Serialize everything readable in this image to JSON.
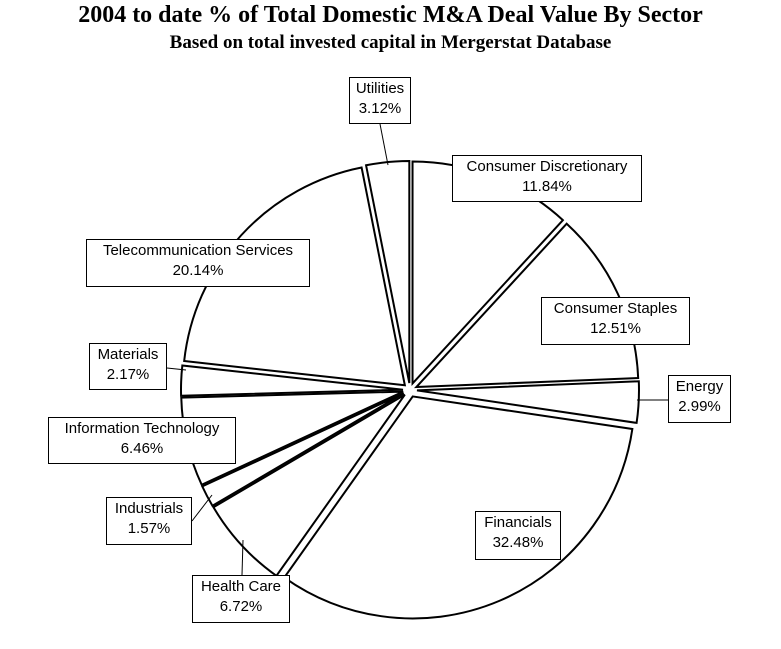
{
  "chart_data": {
    "type": "pie",
    "title": "2004 to date % of Total Domestic M&A Deal Value By Sector",
    "subtitle": "Based on total invested capital in Mergerstat Database",
    "exploded": true,
    "slices": [
      {
        "label": "Consumer Discretionary",
        "value": 11.84,
        "display": "11.84%"
      },
      {
        "label": "Consumer Staples",
        "value": 12.51,
        "display": "12.51%"
      },
      {
        "label": "Energy",
        "value": 2.99,
        "display": "2.99%"
      },
      {
        "label": "Financials",
        "value": 32.48,
        "display": "32.48%"
      },
      {
        "label": "Health Care",
        "value": 6.72,
        "display": "6.72%"
      },
      {
        "label": "Industrials",
        "value": 1.57,
        "display": "1.57%"
      },
      {
        "label": "Information Technology",
        "value": 6.46,
        "display": "6.46%"
      },
      {
        "label": "Materials",
        "value": 2.17,
        "display": "2.17%"
      },
      {
        "label": "Telecommunication Services",
        "value": 20.14,
        "display": "20.14%"
      },
      {
        "label": "Utilities",
        "value": 3.12,
        "display": "3.12%"
      }
    ],
    "colors": {
      "fill": "#ffffff",
      "stroke": "#000000"
    }
  }
}
